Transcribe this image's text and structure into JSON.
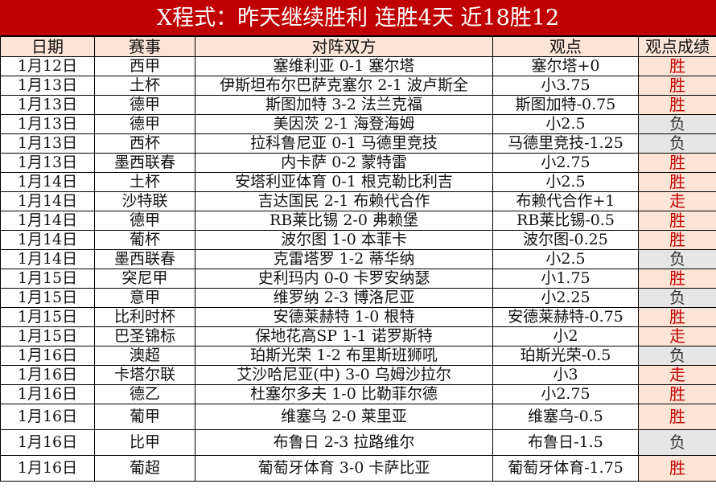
{
  "title": "X程式：昨天继续胜利 连胜4天 近18胜12",
  "headers": [
    "日期",
    "赛事",
    "对阵双方",
    "观点",
    "观点成绩"
  ],
  "colors": {
    "title_bg": "#c00000",
    "header_bg": "#fce4d6",
    "win_bg": "#fce4d6",
    "win_text": "#c00000",
    "lose_bg": "#e7e6e6"
  },
  "rows": [
    {
      "date": "1月12日",
      "league": "西甲",
      "match": "塞维利亚 0-1 塞尔塔",
      "pick": "塞尔塔+0",
      "result": "胜"
    },
    {
      "date": "1月13日",
      "league": "土杯",
      "match": "伊斯坦布尔巴萨克塞尔 2-1 波卢斯全",
      "pick": "小3.75",
      "result": "胜"
    },
    {
      "date": "1月13日",
      "league": "德甲",
      "match": "斯图加特 3-2 法兰克福",
      "pick": "斯图加特-0.75",
      "result": "胜"
    },
    {
      "date": "1月13日",
      "league": "德甲",
      "match": "美因茨 2-1 海登海姆",
      "pick": "小2.5",
      "result": "负"
    },
    {
      "date": "1月13日",
      "league": "西杯",
      "match": "拉科鲁尼亚 0-1 马德里竞技",
      "pick": "马德里竞技-1.25",
      "result": "负"
    },
    {
      "date": "1月13日",
      "league": "墨西联春",
      "match": "内卡萨 0-2 蒙特雷",
      "pick": "小2.75",
      "result": "胜"
    },
    {
      "date": "1月14日",
      "league": "土杯",
      "match": "安塔利亚体育 0-1 根克勒比利吉",
      "pick": "小2.5",
      "result": "胜"
    },
    {
      "date": "1月14日",
      "league": "沙特联",
      "match": "吉达国民 2-1 布赖代合作",
      "pick": "布赖代合作+1",
      "result": "走"
    },
    {
      "date": "1月14日",
      "league": "德甲",
      "match": "RB莱比锡 2-0 弗赖堡",
      "pick": "RB莱比锡-0.5",
      "result": "胜"
    },
    {
      "date": "1月14日",
      "league": "葡杯",
      "match": "波尔图 1-0 本菲卡",
      "pick": "波尔图-0.25",
      "result": "胜"
    },
    {
      "date": "1月14日",
      "league": "墨西联春",
      "match": "克雷塔罗 1-2 蒂华纳",
      "pick": "小2.5",
      "result": "负"
    },
    {
      "date": "1月15日",
      "league": "突尼甲",
      "match": "史利玛内 0-0 卡罗安纳瑟",
      "pick": "小1.75",
      "result": "胜"
    },
    {
      "date": "1月15日",
      "league": "意甲",
      "match": "维罗纳 2-3 博洛尼亚",
      "pick": "小2.25",
      "result": "负"
    },
    {
      "date": "1月15日",
      "league": "比利时杯",
      "match": "安德莱赫特 1-0 根特",
      "pick": "安德莱赫特-0.75",
      "result": "胜"
    },
    {
      "date": "1月15日",
      "league": "巴圣锦标",
      "match": "保地花高SP 1-1 诺罗斯特",
      "pick": "小2",
      "result": "走"
    },
    {
      "date": "1月16日",
      "league": "澳超",
      "match": "珀斯光荣 1-2 布里斯班狮吼",
      "pick": "珀斯光荣-0.5",
      "result": "负"
    },
    {
      "date": "1月16日",
      "league": "卡塔尔联",
      "match": "艾沙哈尼亚(中) 3-0 乌姆沙拉尔",
      "pick": "小3",
      "result": "走"
    },
    {
      "date": "1月16日",
      "league": "德乙",
      "match": "杜塞尔多夫 1-0 比勒菲尔德",
      "pick": "小2.75",
      "result": "胜"
    },
    {
      "date": "1月16日",
      "league": "葡甲",
      "match": "维塞乌 2-0 莱里亚",
      "pick": "维塞乌-0.5",
      "result": "胜"
    },
    {
      "date": "1月16日",
      "league": "比甲",
      "match": "布鲁日 2-3 拉路维尔",
      "pick": "布鲁日-1.5",
      "result": "负"
    },
    {
      "date": "1月16日",
      "league": "葡超",
      "match": "葡萄牙体育 3-0 卡萨比亚",
      "pick": "葡萄牙体育-1.75",
      "result": "胜"
    }
  ]
}
